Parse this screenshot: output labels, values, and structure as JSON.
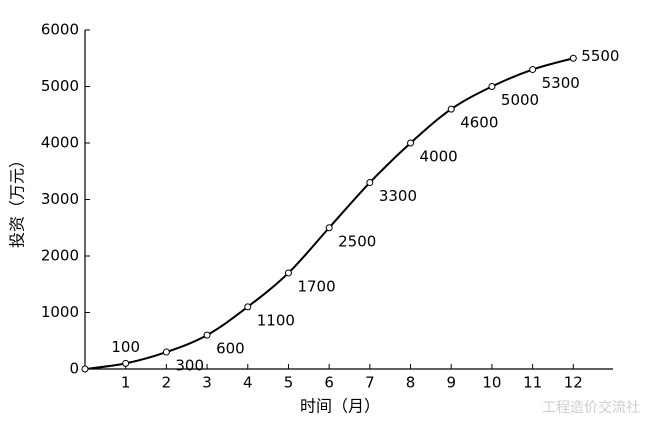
{
  "chart_data": {
    "type": "line",
    "xlabel": "时间（月）",
    "ylabel": "投资（万元）",
    "x": [
      0,
      1,
      2,
      3,
      4,
      5,
      6,
      7,
      8,
      9,
      10,
      11,
      12
    ],
    "values": [
      0,
      100,
      300,
      600,
      1100,
      1700,
      2500,
      3300,
      4000,
      4600,
      5000,
      5300,
      5500
    ],
    "color": "#000000",
    "xlim": [
      0,
      13
    ],
    "xticks": [
      1,
      2,
      3,
      4,
      5,
      6,
      7,
      8,
      9,
      10,
      11,
      12
    ],
    "ylim": [
      0,
      6000
    ],
    "yticks": [
      0,
      1000,
      2000,
      3000,
      4000,
      5000,
      6000
    ],
    "grid": false,
    "watermark": "工程造价交流社"
  }
}
